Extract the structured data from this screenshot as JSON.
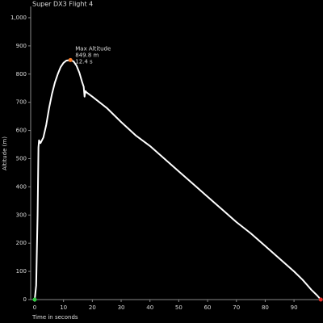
{
  "chart_data": {
    "type": "line",
    "title": "Super DX3 Flight 4",
    "x_label": "Time in seconds",
    "y_label": "Altitude (m)",
    "series": [
      {
        "name": "Altitude",
        "color": "#ffffff",
        "x": [
          0,
          0.5,
          1.0,
          1.3,
          1.5,
          2,
          3,
          4,
          5,
          6,
          7,
          8,
          9,
          10,
          11,
          12.4,
          13.5,
          14.5,
          15.5,
          16.5,
          17,
          17.3,
          17.6,
          18,
          20,
          25,
          30,
          35,
          40,
          45,
          50,
          55,
          60,
          65,
          70,
          75,
          80,
          85,
          90,
          93,
          96,
          98,
          99.3
        ],
        "values": [
          0,
          50,
          300,
          540,
          565,
          555,
          575,
          620,
          680,
          730,
          770,
          800,
          825,
          840,
          848,
          849.8,
          845,
          830,
          805,
          770,
          755,
          720,
          740,
          735,
          720,
          680,
          630,
          583,
          545,
          500,
          455,
          410,
          365,
          320,
          275,
          235,
          190,
          145,
          100,
          70,
          35,
          15,
          0
        ]
      }
    ],
    "markers": [
      {
        "x": 0,
        "y": 0,
        "color": "#2ecc40"
      },
      {
        "x": 12.4,
        "y": 849.8,
        "color": "#ff7f2a"
      },
      {
        "x": 99.3,
        "y": 0,
        "color": "#e0302a"
      }
    ],
    "annotation": {
      "title": "Max Altitude",
      "lines": [
        "849.8 m",
        "12.4  s"
      ]
    },
    "xlim": [
      -1.4,
      99.5
    ],
    "ylim": [
      0,
      1040
    ],
    "xticks": [
      0,
      10,
      20,
      30,
      40,
      50,
      60,
      70,
      80,
      90
    ],
    "yticks": [
      0,
      100,
      200,
      300,
      400,
      500,
      600,
      700,
      800,
      900,
      {
        "value": 1000,
        "label": "1,000"
      }
    ],
    "grid": false
  }
}
